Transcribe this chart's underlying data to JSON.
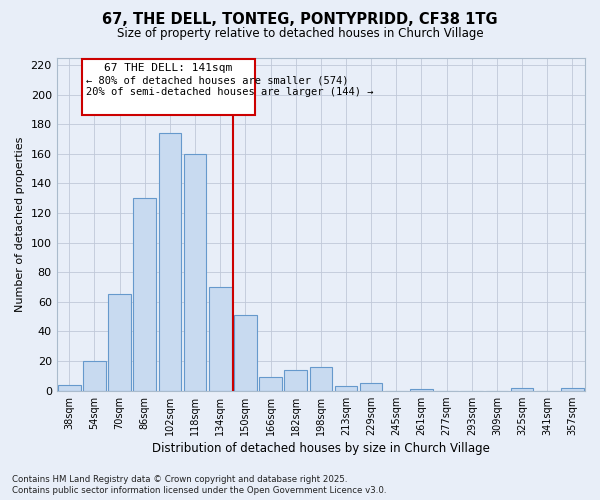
{
  "title": "67, THE DELL, TONTEG, PONTYPRIDD, CF38 1TG",
  "subtitle": "Size of property relative to detached houses in Church Village",
  "xlabel": "Distribution of detached houses by size in Church Village",
  "ylabel": "Number of detached properties",
  "footnote1": "Contains HM Land Registry data © Crown copyright and database right 2025.",
  "footnote2": "Contains public sector information licensed under the Open Government Licence v3.0.",
  "annotation_title": "67 THE DELL: 141sqm",
  "annotation_line1": "← 80% of detached houses are smaller (574)",
  "annotation_line2": "20% of semi-detached houses are larger (144) →",
  "categories": [
    "38sqm",
    "54sqm",
    "70sqm",
    "86sqm",
    "102sqm",
    "118sqm",
    "134sqm",
    "150sqm",
    "166sqm",
    "182sqm",
    "198sqm",
    "213sqm",
    "229sqm",
    "245sqm",
    "261sqm",
    "277sqm",
    "293sqm",
    "309sqm",
    "325sqm",
    "341sqm",
    "357sqm"
  ],
  "values": [
    4,
    20,
    65,
    130,
    174,
    160,
    70,
    51,
    9,
    14,
    16,
    3,
    5,
    0,
    1,
    0,
    0,
    0,
    2,
    0,
    2
  ],
  "bar_color": "#c8daf0",
  "bar_edge_color": "#6699cc",
  "vline_color": "#cc0000",
  "vline_x_index": 7,
  "annotation_box_color": "#cc0000",
  "annotation_fill": "#ffffff",
  "ylim": [
    0,
    225
  ],
  "yticks": [
    0,
    20,
    40,
    60,
    80,
    100,
    120,
    140,
    160,
    180,
    200,
    220
  ],
  "bg_color": "#e8eef8",
  "grid_color": "#c0c8d8"
}
